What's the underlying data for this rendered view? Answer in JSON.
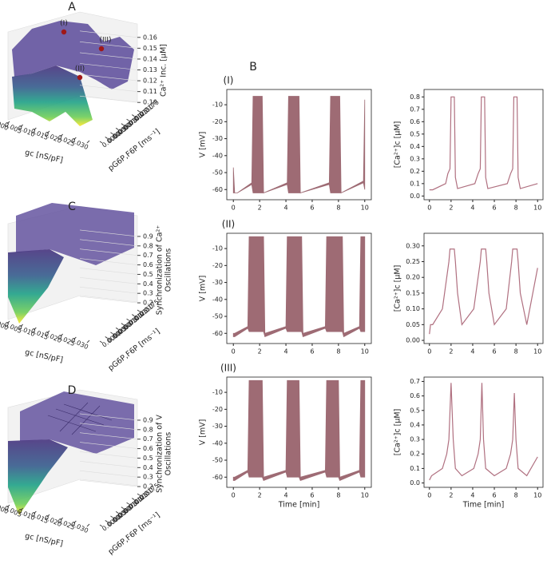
{
  "chart_data": [
    {
      "type": "surface3d",
      "panel": "A",
      "xlabel": "gc [nS/pF]",
      "ylabel": "pG6P,F6P [ms⁻¹]",
      "zlabel": [
        "Ca²⁺ Inc. [μM]"
      ],
      "xlim": [
        0,
        0.03
      ],
      "ylim": [
        0,
        0.0175
      ],
      "zlim": [
        0.095,
        0.165
      ],
      "xticks": [
        {
          "value": 0,
          "label": "0.000"
        },
        {
          "value": 0.005,
          "label": "0.005"
        },
        {
          "value": 0.01,
          "label": "0.010"
        },
        {
          "value": 0.015,
          "label": "0.015"
        },
        {
          "value": 0.02,
          "label": "0.020"
        },
        {
          "value": 0.025,
          "label": "0.025"
        },
        {
          "value": 0.03,
          "label": "0.030"
        }
      ],
      "yticks": [
        {
          "value": 0,
          "label": "0.0000"
        },
        {
          "value": 0.0025,
          "label": "0.0025"
        },
        {
          "value": 0.005,
          "label": "0.0050"
        },
        {
          "value": 0.0075,
          "label": "0.0075"
        },
        {
          "value": 0.01,
          "label": "0.0100"
        },
        {
          "value": 0.0125,
          "label": "0.0125"
        },
        {
          "value": 0.015,
          "label": "0.0150"
        },
        {
          "value": 0.0175,
          "label": "0.0175"
        }
      ],
      "zticks": [
        {
          "value": 0.1,
          "label": "0.10"
        },
        {
          "value": 0.11,
          "label": "0.11"
        },
        {
          "value": 0.12,
          "label": "0.12"
        },
        {
          "value": 0.13,
          "label": "0.13"
        },
        {
          "value": 0.14,
          "label": "0.14"
        },
        {
          "value": 0.15,
          "label": "0.15"
        },
        {
          "value": 0.16,
          "label": "0.16"
        }
      ],
      "annotations": [
        "(I)",
        "(II)",
        "(III)"
      ]
    },
    {
      "type": "surface3d",
      "panel": "C",
      "xlabel": "gc [nS/pF]",
      "ylabel": "pG6P,F6P [ms⁻¹]",
      "zlabel": [
        "Synchronization of Ca²⁺",
        "Oscillations"
      ],
      "xlim": [
        0,
        0.03
      ],
      "ylim": [
        0,
        0.0175
      ],
      "zlim": [
        0.15,
        0.95
      ],
      "xticks": [
        {
          "value": 0,
          "label": "0.000"
        },
        {
          "value": 0.005,
          "label": "0.005"
        },
        {
          "value": 0.01,
          "label": "0.010"
        },
        {
          "value": 0.015,
          "label": "0.015"
        },
        {
          "value": 0.02,
          "label": "0.020"
        },
        {
          "value": 0.025,
          "label": "0.025"
        },
        {
          "value": 0.03,
          "label": "0.030"
        }
      ],
      "yticks": [
        {
          "value": 0,
          "label": "0.0000"
        },
        {
          "value": 0.0025,
          "label": "0.0025"
        },
        {
          "value": 0.005,
          "label": "0.0050"
        },
        {
          "value": 0.0075,
          "label": "0.0075"
        },
        {
          "value": 0.01,
          "label": "0.0100"
        },
        {
          "value": 0.0125,
          "label": "0.0125"
        },
        {
          "value": 0.015,
          "label": "0.0150"
        },
        {
          "value": 0.0175,
          "label": "0.0175"
        }
      ],
      "zticks": [
        0.2,
        0.3,
        0.4,
        0.5,
        0.6,
        0.7,
        0.8,
        0.9
      ]
    },
    {
      "type": "surface3d",
      "panel": "D",
      "xlabel": "gc [nS/pF]",
      "ylabel": "pG6P,F6P [ms⁻¹]",
      "zlabel": [
        "Synchronization of V",
        "Oscillations"
      ],
      "xlim": [
        0,
        0.03
      ],
      "ylim": [
        0,
        0.0175
      ],
      "zlim": [
        0.15,
        0.95
      ],
      "xticks": [
        {
          "value": 0,
          "label": "0.000"
        },
        {
          "value": 0.005,
          "label": "0.005"
        },
        {
          "value": 0.01,
          "label": "0.010"
        },
        {
          "value": 0.015,
          "label": "0.015"
        },
        {
          "value": 0.02,
          "label": "0.020"
        },
        {
          "value": 0.025,
          "label": "0.025"
        },
        {
          "value": 0.03,
          "label": "0.030"
        }
      ],
      "yticks": [
        {
          "value": 0,
          "label": "0.0000"
        },
        {
          "value": 0.0025,
          "label": "0.0025"
        },
        {
          "value": 0.005,
          "label": "0.0050"
        },
        {
          "value": 0.0075,
          "label": "0.0075"
        },
        {
          "value": 0.01,
          "label": "0.0100"
        },
        {
          "value": 0.0125,
          "label": "0.0125"
        },
        {
          "value": 0.015,
          "label": "0.0150"
        },
        {
          "value": 0.0175,
          "label": "0.0175"
        }
      ],
      "zticks": [
        0.2,
        0.3,
        0.4,
        0.5,
        0.6,
        0.7,
        0.8,
        0.9
      ]
    },
    {
      "type": "band",
      "panel": "B",
      "row_label": "(I)",
      "ylabel": "V [mV]",
      "color": "#9e6b74",
      "xlim": [
        -0.5,
        10.5
      ],
      "ylim": [
        -66,
        -1
      ],
      "xticks": [
        0,
        2,
        4,
        6,
        8,
        10
      ],
      "yticks": [
        -60,
        -50,
        -40,
        -30,
        -20,
        -10
      ],
      "x": [
        0,
        0.1,
        0.3,
        1.4,
        1.5,
        2.2,
        2.3,
        4.1,
        4.2,
        5.0,
        5.1,
        7.3,
        7.4,
        8.1,
        8.2,
        9.9,
        10
      ],
      "upper": [
        -47,
        -62,
        -62,
        -56,
        -5,
        -5,
        -62,
        -56,
        -5,
        -5,
        -62,
        -56,
        -5,
        -5,
        -62,
        -55,
        -7
      ],
      "lower": [
        -62,
        -62,
        -62,
        -57,
        -62,
        -62,
        -62,
        -57,
        -62,
        -62,
        -62,
        -57,
        -62,
        -62,
        -62,
        -56,
        -60
      ]
    },
    {
      "type": "line",
      "ylabel": "[Ca²⁺]c [μM]",
      "color": "#b07080",
      "xlim": [
        -0.5,
        10.5
      ],
      "ylim": [
        -0.03,
        0.86
      ],
      "xticks": [
        0,
        2,
        4,
        6,
        8,
        10
      ],
      "yticks": [
        {
          "value": 0,
          "label": "0.0"
        },
        0.1,
        0.2,
        0.3,
        0.4,
        0.5,
        0.6,
        0.7,
        0.8
      ],
      "x": [
        0,
        0.3,
        1.5,
        1.7,
        1.9,
        2.0,
        2.3,
        2.4,
        2.6,
        4.2,
        4.5,
        4.7,
        4.8,
        5.1,
        5.2,
        5.4,
        7.2,
        7.5,
        7.7,
        7.8,
        8.1,
        8.2,
        8.4,
        10
      ],
      "values": [
        0.05,
        0.05,
        0.1,
        0.18,
        0.22,
        0.8,
        0.8,
        0.15,
        0.06,
        0.1,
        0.18,
        0.22,
        0.8,
        0.8,
        0.15,
        0.06,
        0.1,
        0.18,
        0.22,
        0.8,
        0.8,
        0.15,
        0.06,
        0.1
      ]
    },
    {
      "type": "band",
      "row_label": "(II)",
      "ylabel": "V [mV]",
      "color": "#9e6b74",
      "xlim": [
        -0.5,
        10.5
      ],
      "ylim": [
        -66,
        -1
      ],
      "xticks": [
        0,
        2,
        4,
        6,
        8,
        10
      ],
      "yticks": [
        -60,
        -50,
        -40,
        -30,
        -20,
        -10
      ],
      "x": [
        0,
        0.1,
        1.1,
        1.2,
        2.3,
        2.4,
        4.0,
        4.1,
        5.2,
        5.3,
        7.0,
        7.1,
        8.3,
        8.4,
        9.6,
        9.7,
        10
      ],
      "upper": [
        -60,
        -60,
        -56,
        -3,
        -3,
        -60,
        -56,
        -3,
        -3,
        -60,
        -56,
        -3,
        -3,
        -60,
        -56,
        -3,
        -3
      ],
      "lower": [
        -62,
        -62,
        -57,
        -59,
        -59,
        -62,
        -57,
        -59,
        -59,
        -62,
        -57,
        -59,
        -59,
        -62,
        -57,
        -59,
        -59
      ]
    },
    {
      "type": "line",
      "ylabel": "[Ca²⁺]c [μM]",
      "color": "#b07080",
      "xlim": [
        -0.5,
        10.5
      ],
      "ylim": [
        -0.01,
        0.34
      ],
      "xticks": [
        0,
        2,
        4,
        6,
        8,
        10
      ],
      "yticks": [
        {
          "value": 0,
          "label": "0.00"
        },
        0.05,
        {
          "value": 0.1,
          "label": "0.10"
        },
        0.15,
        {
          "value": 0.2,
          "label": "0.20"
        },
        0.25,
        {
          "value": 0.3,
          "label": "0.30"
        }
      ],
      "x": [
        0,
        0.1,
        0.3,
        1.2,
        1.8,
        1.9,
        2.3,
        2.4,
        2.6,
        3.0,
        4.1,
        4.7,
        4.8,
        5.2,
        5.3,
        5.5,
        6.0,
        7.1,
        7.6,
        7.7,
        8.1,
        8.2,
        8.4,
        9.0,
        10
      ],
      "values": [
        0.02,
        0.05,
        0.05,
        0.1,
        0.25,
        0.29,
        0.29,
        0.25,
        0.15,
        0.05,
        0.1,
        0.25,
        0.29,
        0.29,
        0.25,
        0.15,
        0.05,
        0.1,
        0.25,
        0.29,
        0.29,
        0.25,
        0.15,
        0.05,
        0.23
      ]
    },
    {
      "type": "band",
      "row_label": "(III)",
      "ylabel": "V [mV]",
      "xlabel": "Time [min]",
      "color": "#9e6b74",
      "xlim": [
        -0.5,
        10.5
      ],
      "ylim": [
        -66,
        -1
      ],
      "xticks": [
        0,
        2,
        4,
        6,
        8,
        10
      ],
      "yticks": [
        -60,
        -50,
        -40,
        -30,
        -20,
        -10
      ],
      "x": [
        0,
        0.1,
        1.1,
        1.2,
        2.2,
        2.3,
        4.0,
        4.1,
        5.0,
        5.1,
        7.0,
        7.1,
        8.0,
        8.1,
        9.6,
        9.7,
        10
      ],
      "upper": [
        -60,
        -60,
        -56,
        -3,
        -3,
        -60,
        -56,
        -3,
        -3,
        -60,
        -56,
        -3,
        -3,
        -60,
        -56,
        -3,
        -3
      ],
      "lower": [
        -62,
        -62,
        -57,
        -60,
        -60,
        -62,
        -57,
        -60,
        -60,
        -62,
        -57,
        -60,
        -60,
        -62,
        -57,
        -60,
        -60
      ]
    },
    {
      "type": "line",
      "ylabel": "[Ca²⁺]c [μM]",
      "xlabel": "Time [min]",
      "color": "#b07080",
      "xlim": [
        -0.5,
        10.5
      ],
      "ylim": [
        -0.03,
        0.73
      ],
      "xticks": [
        0,
        2,
        4,
        6,
        8,
        10
      ],
      "yticks": [
        {
          "value": 0,
          "label": "0.0"
        },
        0.1,
        0.2,
        0.3,
        0.4,
        0.5,
        0.6,
        0.7
      ],
      "x": [
        0,
        0.2,
        1.2,
        1.6,
        1.8,
        2.0,
        2.2,
        2.4,
        3.0,
        4.1,
        4.5,
        4.7,
        4.85,
        5.0,
        5.2,
        6.0,
        7.1,
        7.5,
        7.7,
        7.85,
        8.0,
        8.2,
        9.0,
        10
      ],
      "values": [
        0.02,
        0.05,
        0.1,
        0.2,
        0.3,
        0.69,
        0.3,
        0.1,
        0.05,
        0.1,
        0.2,
        0.3,
        0.69,
        0.3,
        0.1,
        0.05,
        0.1,
        0.2,
        0.3,
        0.62,
        0.3,
        0.1,
        0.05,
        0.18
      ]
    }
  ]
}
